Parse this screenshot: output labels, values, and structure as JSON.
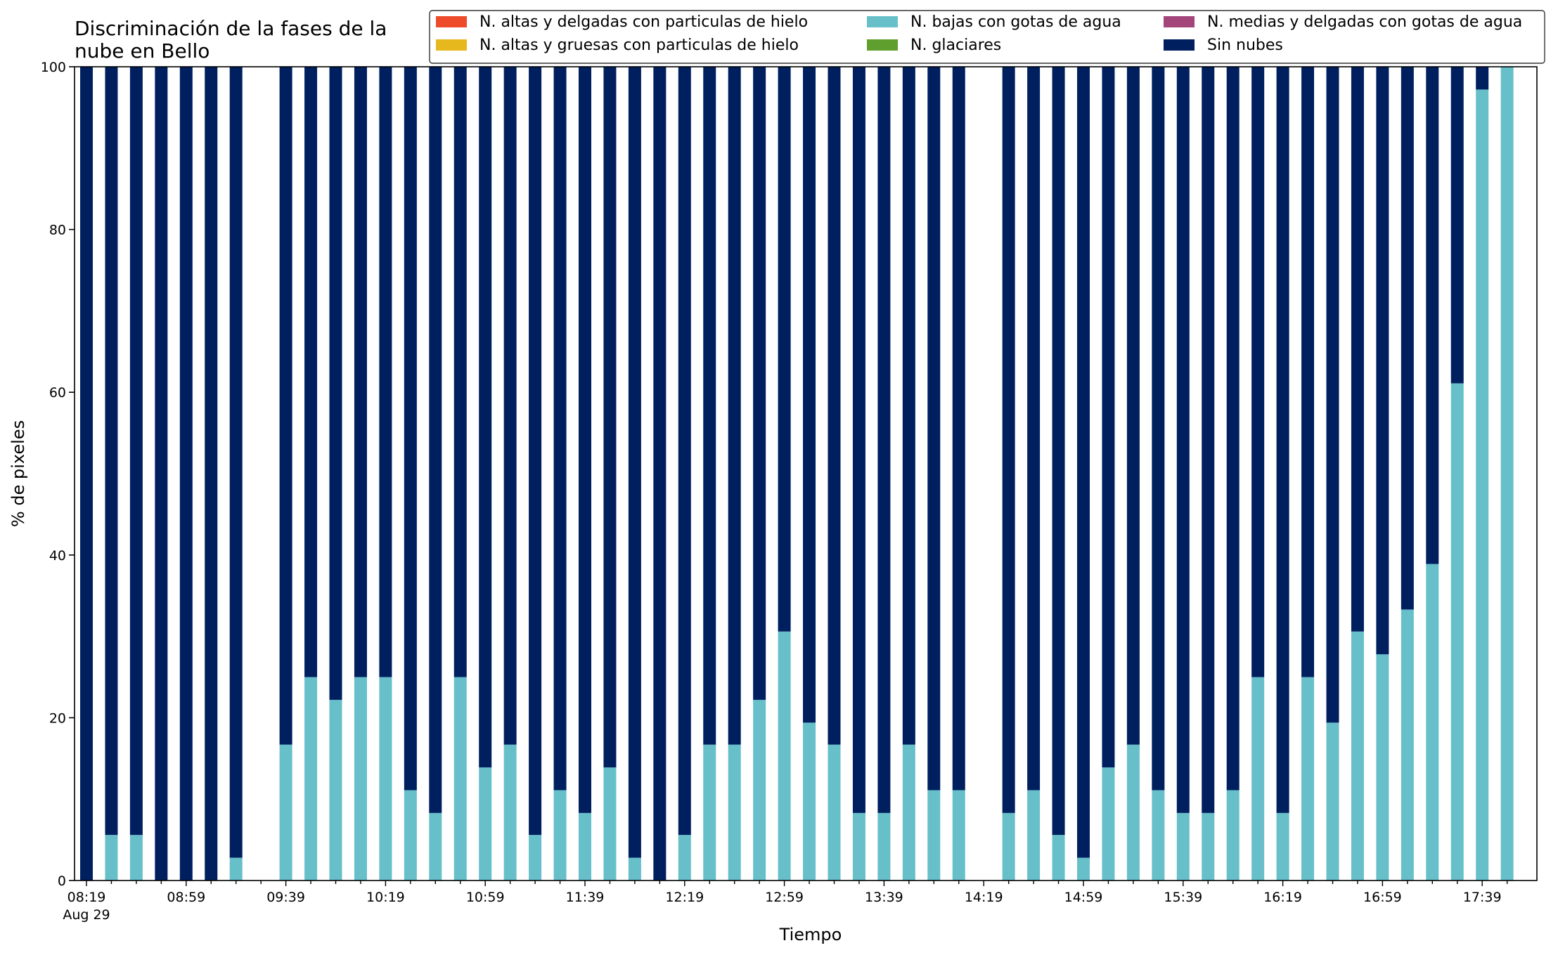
{
  "chart_data": {
    "type": "bar",
    "stacked": true,
    "title_lines": [
      "Discriminación de la fases de la",
      "nube en Bello"
    ],
    "xlabel": "Tiempo",
    "ylabel": "% de pixeles",
    "ylim": [
      0,
      100
    ],
    "yticks": [
      "0",
      "20",
      "40",
      "60",
      "80",
      "100"
    ],
    "xtick_labels": [
      "08:19",
      "08:59",
      "09:39",
      "10:19",
      "10:59",
      "11:39",
      "12:19",
      "12:59",
      "13:39",
      "14:19",
      "14:59",
      "15:39",
      "16:19",
      "16:59",
      "17:39"
    ],
    "xtick_sublabel": "Aug 29",
    "grid": false,
    "legend_placement": "top-right",
    "slot_minutes": 10,
    "start_time": "08:19",
    "x": [
      "08:19",
      "08:29",
      "08:39",
      "08:49",
      "08:59",
      "09:09",
      "09:19",
      "09:29",
      "09:39",
      "09:49",
      "09:59",
      "10:09",
      "10:19",
      "10:29",
      "10:39",
      "10:49",
      "10:59",
      "11:09",
      "11:19",
      "11:29",
      "11:39",
      "11:49",
      "11:59",
      "12:09",
      "12:19",
      "12:29",
      "12:39",
      "12:49",
      "12:59",
      "13:09",
      "13:19",
      "13:29",
      "13:39",
      "13:49",
      "13:59",
      "14:09",
      "14:19",
      "14:29",
      "14:39",
      "14:49",
      "14:59",
      "15:09",
      "15:19",
      "15:29",
      "15:39",
      "15:49",
      "15:59",
      "16:09",
      "16:19",
      "16:29",
      "16:39",
      "16:49",
      "16:59",
      "17:09",
      "17:19",
      "17:29",
      "17:39",
      "17:49"
    ],
    "series": [
      {
        "name": "N. altas y delgadas con particulas de hielo",
        "color": "#ee4b2b",
        "values": [
          0,
          0,
          0,
          0,
          0,
          0,
          0,
          null,
          0,
          0,
          0,
          0,
          0,
          0,
          0,
          0,
          0,
          0,
          0,
          0,
          0,
          0,
          0,
          0,
          0,
          0,
          0,
          0,
          0,
          0,
          0,
          0,
          0,
          0,
          0,
          0,
          null,
          0,
          0,
          0,
          0,
          0,
          0,
          0,
          0,
          0,
          0,
          0,
          0,
          0,
          0,
          0,
          0,
          0,
          0,
          0,
          0,
          0
        ]
      },
      {
        "name": "N. altas y gruesas con particulas de hielo",
        "color": "#e6b81e",
        "values": [
          0,
          0,
          0,
          0,
          0,
          0,
          0,
          null,
          0,
          0,
          0,
          0,
          0,
          0,
          0,
          0,
          0,
          0,
          0,
          0,
          0,
          0,
          0,
          0,
          0,
          0,
          0,
          0,
          0,
          0,
          0,
          0,
          0,
          0,
          0,
          0,
          null,
          0,
          0,
          0,
          0,
          0,
          0,
          0,
          0,
          0,
          0,
          0,
          0,
          0,
          0,
          0,
          0,
          0,
          0,
          0,
          0,
          0
        ]
      },
      {
        "name": "N. bajas con gotas de agua",
        "color": "#67bfca",
        "values": [
          0,
          5.6,
          5.6,
          0,
          0,
          0,
          2.8,
          null,
          16.7,
          25,
          22.2,
          25,
          25,
          11.1,
          8.3,
          25,
          13.9,
          16.7,
          5.6,
          11.1,
          8.3,
          13.9,
          2.8,
          0,
          5.6,
          16.7,
          16.7,
          22.2,
          30.6,
          19.4,
          16.7,
          8.3,
          8.3,
          16.7,
          11.1,
          11.1,
          null,
          8.3,
          11.1,
          5.6,
          2.8,
          13.9,
          16.7,
          11.1,
          8.3,
          8.3,
          11.1,
          25,
          8.3,
          25,
          19.4,
          30.6,
          27.8,
          33.3,
          38.9,
          61.1,
          97.2,
          100
        ]
      },
      {
        "name": "N. glaciares",
        "color": "#5f9f2e",
        "values": [
          0,
          0,
          0,
          0,
          0,
          0,
          0,
          null,
          0,
          0,
          0,
          0,
          0,
          0,
          0,
          0,
          0,
          0,
          0,
          0,
          0,
          0,
          0,
          0,
          0,
          0,
          0,
          0,
          0,
          0,
          0,
          0,
          0,
          0,
          0,
          0,
          null,
          0,
          0,
          0,
          0,
          0,
          0,
          0,
          0,
          0,
          0,
          0,
          0,
          0,
          0,
          0,
          0,
          0,
          0,
          0,
          0,
          0
        ]
      },
      {
        "name": "N. medias y delgadas con gotas de agua",
        "color": "#a3457b",
        "values": [
          0,
          0,
          0,
          0,
          0,
          0,
          0,
          null,
          0,
          0,
          0,
          0,
          0,
          0,
          0,
          0,
          0,
          0,
          0,
          0,
          0,
          0,
          0,
          0,
          0,
          0,
          0,
          0,
          0,
          0,
          0,
          0,
          0,
          0,
          0,
          0,
          null,
          0,
          0,
          0,
          0,
          0,
          0,
          0,
          0,
          0,
          0,
          0,
          0,
          0,
          0,
          0,
          0,
          0,
          0,
          0,
          0,
          0
        ]
      },
      {
        "name": "Sin nubes",
        "color": "#001f5f",
        "values": [
          100,
          94.4,
          94.4,
          100,
          100,
          100,
          97.2,
          null,
          83.3,
          75,
          77.8,
          75,
          75,
          88.9,
          91.7,
          75,
          86.1,
          83.3,
          94.4,
          88.9,
          91.7,
          86.1,
          97.2,
          100,
          94.4,
          83.3,
          83.3,
          77.8,
          69.4,
          80.6,
          83.3,
          91.7,
          91.7,
          83.3,
          88.9,
          88.9,
          null,
          91.7,
          88.9,
          94.4,
          97.2,
          86.1,
          83.3,
          88.9,
          91.7,
          91.7,
          88.9,
          75,
          91.7,
          75,
          80.6,
          69.4,
          72.2,
          66.7,
          61.1,
          38.9,
          2.8,
          0
        ]
      }
    ]
  }
}
